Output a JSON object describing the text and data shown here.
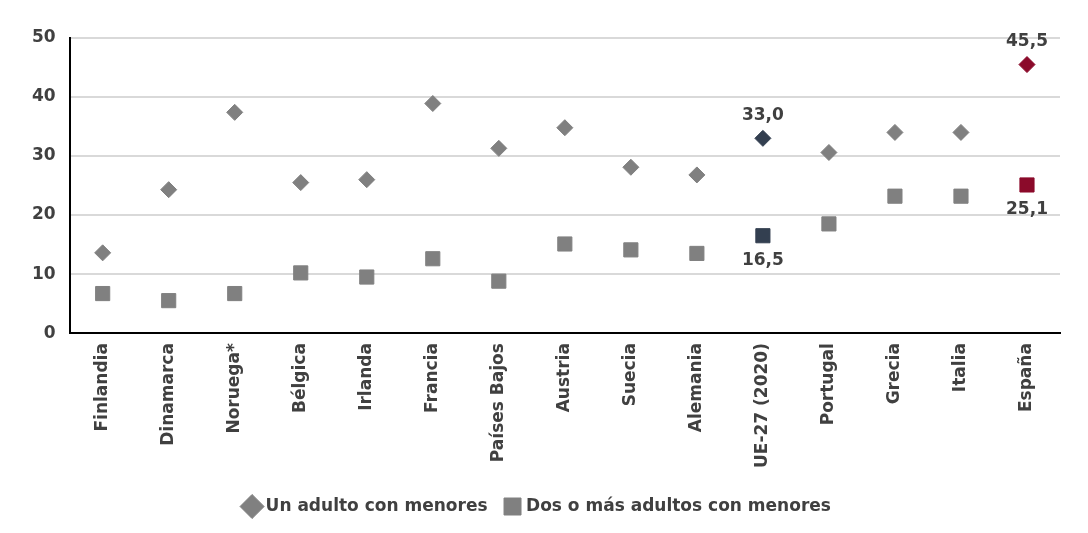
{
  "chart_data": {
    "type": "scatter",
    "categories": [
      "Finlandia",
      "Dinamarca",
      "Noruega*",
      "Bélgica",
      "Irlanda",
      "Francia",
      "Países Bajos",
      "Austria",
      "Suecia",
      "Alemania",
      "UE-27 (2020)",
      "Portugal",
      "Grecia",
      "Italia",
      "España"
    ],
    "series": [
      {
        "name": "Un adulto con menores",
        "marker": "diamond",
        "colors": [
          "#808080",
          "#808080",
          "#808080",
          "#808080",
          "#808080",
          "#808080",
          "#808080",
          "#808080",
          "#808080",
          "#808080",
          "#333f50",
          "#808080",
          "#808080",
          "#808080",
          "#8b0a2a"
        ],
        "values": [
          13.6,
          24.3,
          37.4,
          25.5,
          26.0,
          38.9,
          31.3,
          34.8,
          28.1,
          26.8,
          33.0,
          30.6,
          34.0,
          34.0,
          45.5
        ],
        "value_labels": [
          null,
          null,
          null,
          null,
          null,
          null,
          null,
          null,
          null,
          null,
          "33,0",
          null,
          null,
          null,
          "45,5"
        ]
      },
      {
        "name": "Dos o más adultos con menores",
        "marker": "square",
        "colors": [
          "#808080",
          "#808080",
          "#808080",
          "#808080",
          "#808080",
          "#808080",
          "#808080",
          "#808080",
          "#808080",
          "#808080",
          "#333f50",
          "#808080",
          "#808080",
          "#808080",
          "#8b0a2a"
        ],
        "values": [
          6.7,
          5.5,
          6.7,
          10.2,
          9.5,
          12.6,
          8.8,
          15.1,
          14.1,
          13.5,
          16.5,
          18.5,
          23.2,
          23.2,
          25.1
        ],
        "value_labels": [
          null,
          null,
          null,
          null,
          null,
          null,
          null,
          null,
          null,
          null,
          "16,5",
          null,
          null,
          null,
          "25,1"
        ]
      }
    ],
    "ylim": [
      0,
      50
    ],
    "yticks": [
      0,
      10,
      20,
      30,
      40,
      50
    ],
    "grid": "y",
    "legend": "bottom"
  }
}
